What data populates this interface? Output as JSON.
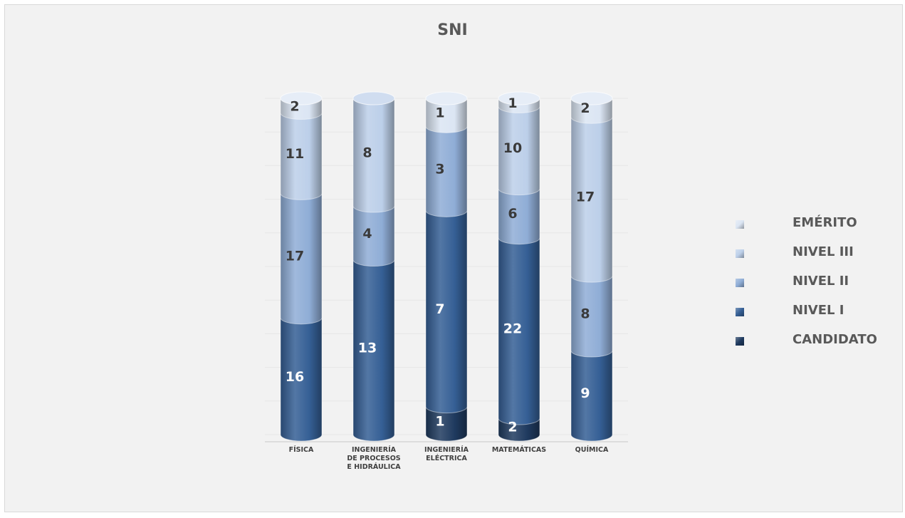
{
  "chart_data": {
    "type": "bar",
    "stacked": true,
    "title": "SNI",
    "categories": [
      "FÍSICA",
      "INGENIERÍA DE PROCESOS E HIDRÁULICA",
      "INGENIERÍA ELÉCTRICA",
      "MATEMÁTICAS",
      "QUÍMICA"
    ],
    "category_lines": [
      [
        "FÍSICA"
      ],
      [
        "INGENIERÍA",
        "DE PROCESOS",
        "E HIDRÁULICA"
      ],
      [
        "INGENIERÍA",
        "ELÉCTRICA"
      ],
      [
        "MATEMÁTICAS"
      ],
      [
        "QUÍMICA"
      ]
    ],
    "series": [
      {
        "name": "CANDIDATO",
        "values": [
          null,
          null,
          1,
          2,
          null
        ],
        "color": "#1f3a5f"
      },
      {
        "name": "NIVEL I",
        "values": [
          16,
          13,
          7,
          22,
          9
        ],
        "color": "#355f95"
      },
      {
        "name": "NIVEL II",
        "values": [
          17,
          4,
          3,
          6,
          8
        ],
        "color": "#8fadd6"
      },
      {
        "name": "NIVEL III",
        "values": [
          11,
          8,
          null,
          10,
          17
        ],
        "color": "#bccfe9"
      },
      {
        "name": "EMÉRITO",
        "values": [
          2,
          null,
          1,
          1,
          2
        ],
        "color": "#dbe5f3"
      }
    ],
    "legend_order": [
      "EMÉRITO",
      "NIVEL III",
      "NIVEL II",
      "NIVEL I",
      "CANDIDATO"
    ],
    "legend_position": "right",
    "percent_stacked": true,
    "grid": true
  }
}
